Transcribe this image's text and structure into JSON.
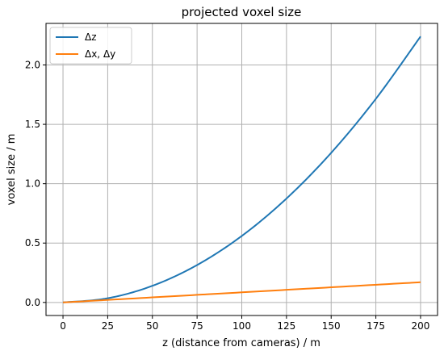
{
  "chart_data": {
    "type": "line",
    "title": "projected voxel size",
    "xlabel": "z (distance from cameras) / m",
    "ylabel": "voxel size / m",
    "xlim": [
      -9.5,
      209.5
    ],
    "ylim": [
      -0.11,
      2.35
    ],
    "xticks": [
      0,
      25,
      50,
      75,
      100,
      125,
      150,
      175,
      200
    ],
    "yticks": [
      0.0,
      0.5,
      1.0,
      1.5,
      2.0
    ],
    "xtick_labels": [
      "0",
      "25",
      "50",
      "75",
      "100",
      "125",
      "150",
      "175",
      "200"
    ],
    "ytick_labels": [
      "0.0",
      "0.5",
      "1.0",
      "1.5",
      "2.0"
    ],
    "grid": true,
    "legend_position": "upper-left",
    "series": [
      {
        "name": "Δz",
        "color": "#1f77b4",
        "x": [
          0,
          25,
          50,
          75,
          100,
          125,
          150,
          175,
          200
        ],
        "y": [
          0.0,
          0.035,
          0.14,
          0.315,
          0.56,
          0.875,
          1.26,
          1.715,
          2.24
        ]
      },
      {
        "name": "Δx, Δy",
        "color": "#ff7f0e",
        "x": [
          0,
          50,
          100,
          150,
          200
        ],
        "y": [
          0.0,
          0.0425,
          0.085,
          0.1275,
          0.17
        ]
      }
    ]
  }
}
